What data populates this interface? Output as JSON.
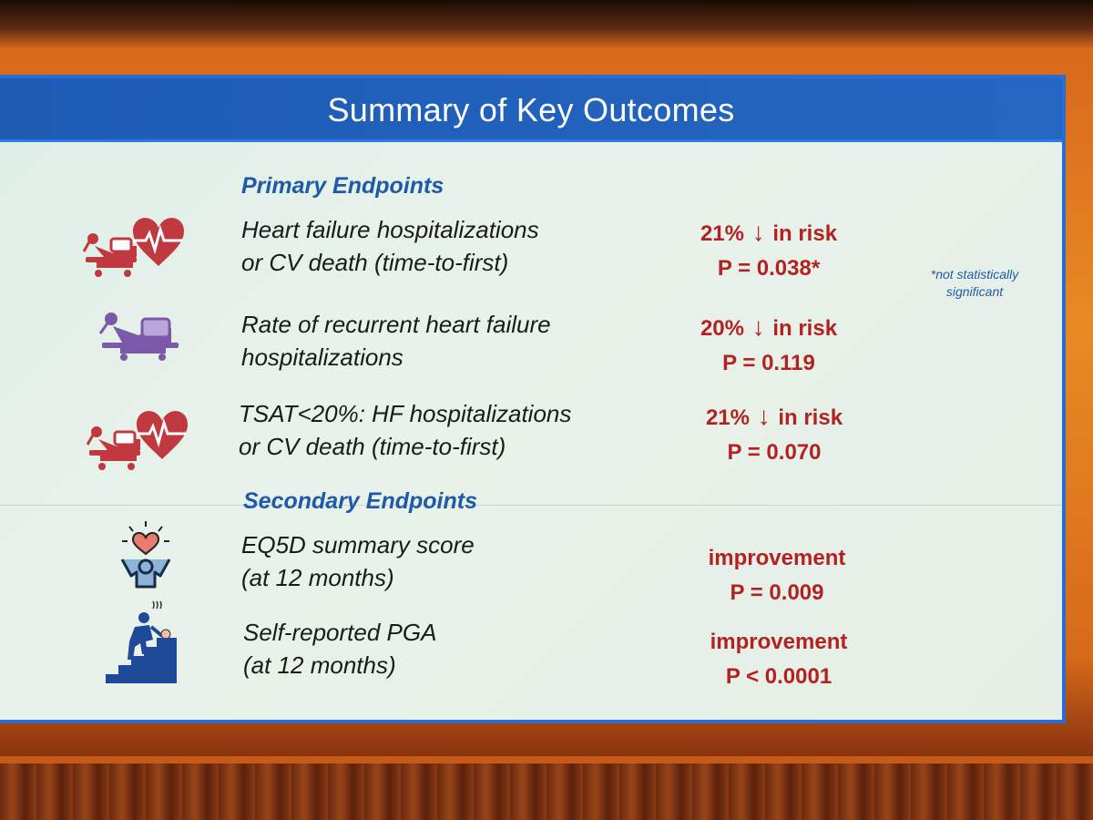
{
  "slide": {
    "title": "Summary of Key Outcomes",
    "footnote": "*not statistically significant",
    "sections": [
      {
        "heading": "Primary Endpoints",
        "items": [
          {
            "icon": "hospital-bed-heart-icon",
            "line1": "Heart failure hospitalizations",
            "line2": "or CV death (time-to-first)",
            "result_pct": "21%",
            "result_text": "in risk",
            "p_value": "P = 0.038*"
          },
          {
            "icon": "hospital-bed-icon",
            "line1": "Rate of recurrent heart failure",
            "line2": "hospitalizations",
            "result_pct": "20%",
            "result_text": "in risk",
            "p_value": "P = 0.119"
          },
          {
            "icon": "hospital-bed-heart-icon",
            "line1": "TSAT<20%: HF hospitalizations",
            "line2": "or CV death (time-to-first)",
            "result_pct": "21%",
            "result_text": "in risk",
            "p_value": "P = 0.070"
          }
        ]
      },
      {
        "heading": "Secondary Endpoints",
        "items": [
          {
            "icon": "happy-person-heart-icon",
            "line1": "EQ5D summary score",
            "line2": "(at 12 months)",
            "result_text": "improvement",
            "p_value": "P = 0.009"
          },
          {
            "icon": "tired-person-stairs-icon",
            "line1": "Self-reported PGA",
            "line2": "(at 12 months)",
            "result_text": "improvement",
            "p_value": "P < 0.0001"
          }
        ]
      }
    ]
  },
  "colors": {
    "title_bar": "#1e5cb4",
    "heading": "#1f5aa8",
    "result": "#b22222",
    "background": "#e6f0e8",
    "icon_red": "#c0393f",
    "icon_purple": "#7a5aa8",
    "icon_blue": "#1f4a9a"
  }
}
